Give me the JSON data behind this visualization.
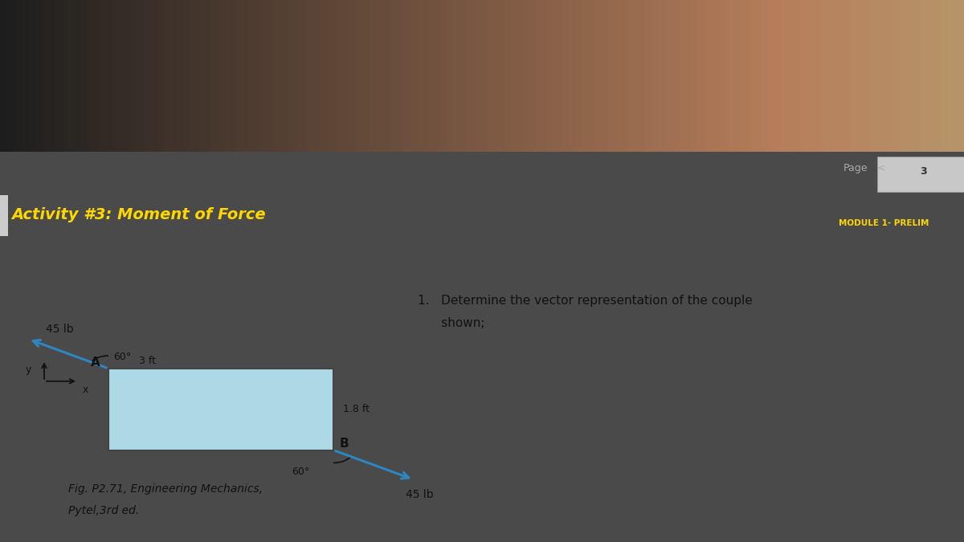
{
  "title": "Activity #3: Moment of Force",
  "title_color": "#FFD700",
  "header_bg": "#C0421A",
  "dark_bg": "#4A4A4A",
  "photo_top_color": "#8B6914",
  "page_label": "Page",
  "page_num": "3",
  "module_label": "MODULE 1- PRELIM",
  "module_color": "#FFD700",
  "content_bg": "#E8E8E8",
  "rect_fill": "#ADD8E6",
  "rect_edge": "#444444",
  "question_text_1": "1.   Determine the vector representation of the couple",
  "question_text_2": "      shown;",
  "fig_caption_1": "Fig. P2.71, Engineering Mechanics,",
  "fig_caption_2": "Pytel,3rd ed.",
  "force_lb": "45 lb",
  "angle_deg": "60°",
  "width_ft": "3 ft",
  "height_ft": "1.8 ft",
  "label_A": "A",
  "label_B": "B",
  "label_y": "y",
  "label_x": "x",
  "arrow_color": "#2E86C1",
  "text_color": "#111111",
  "page_box_bg": "#C8C8C8",
  "page_text_color": "#888888",
  "chevron_color": "#888888"
}
